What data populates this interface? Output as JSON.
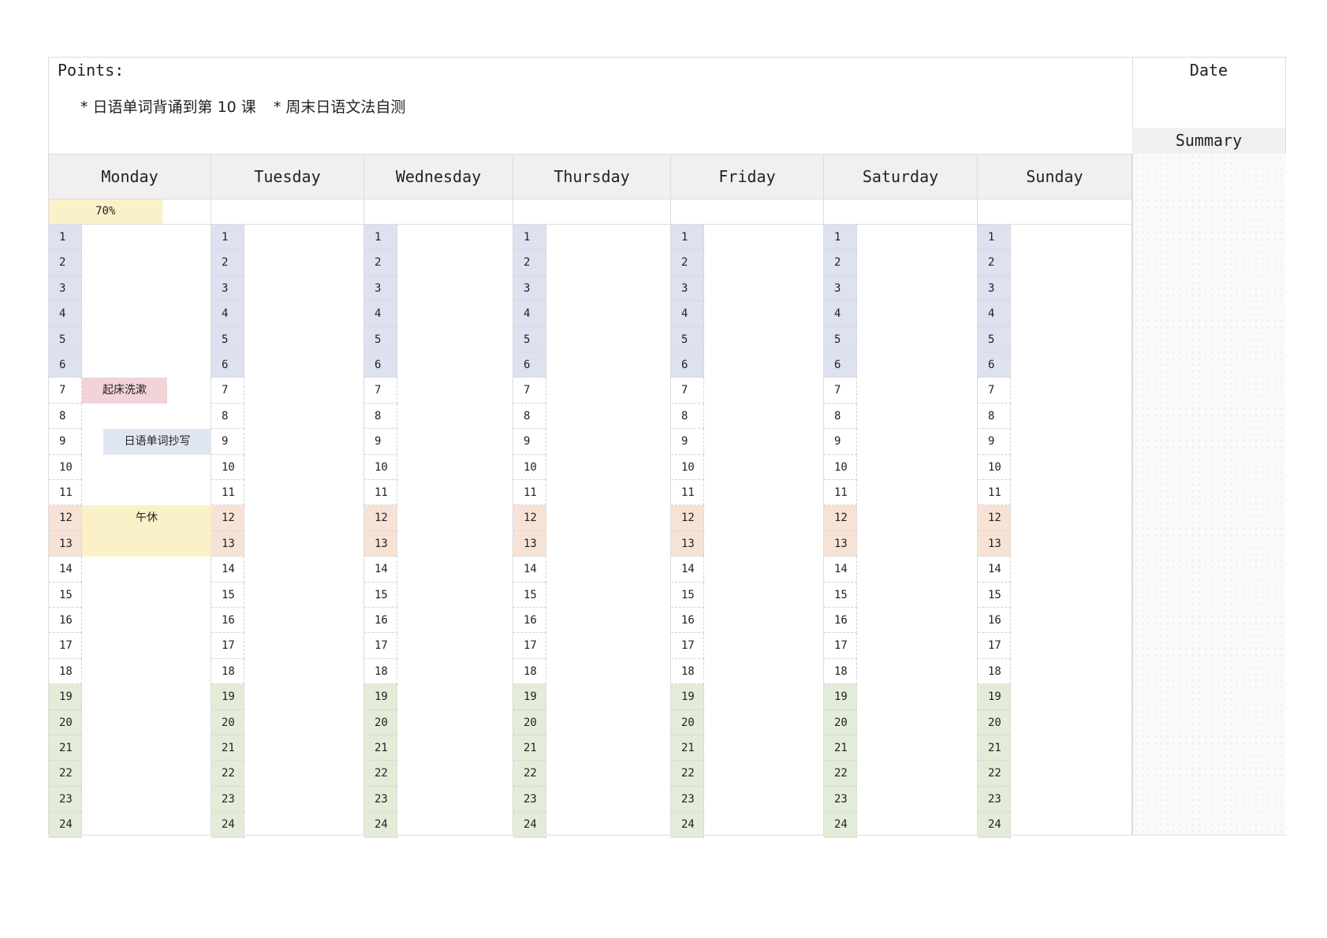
{
  "points": {
    "label": "Points:",
    "items": [
      "* 日语单词背诵到第 10 课",
      "* 周末日语文法自测"
    ]
  },
  "date_label": "Date",
  "summary_label": "Summary",
  "days": [
    {
      "name": "Monday",
      "progress_text": "70%",
      "progress": 0.7
    },
    {
      "name": "Tuesday",
      "progress_text": "",
      "progress": 0
    },
    {
      "name": "Wednesday",
      "progress_text": "",
      "progress": 0
    },
    {
      "name": "Thursday",
      "progress_text": "",
      "progress": 0
    },
    {
      "name": "Friday",
      "progress_text": "",
      "progress": 0
    },
    {
      "name": "Saturday",
      "progress_text": "",
      "progress": 0
    },
    {
      "name": "Sunday",
      "progress_text": "",
      "progress": 0
    }
  ],
  "hours": [
    "1",
    "2",
    "3",
    "4",
    "5",
    "6",
    "7",
    "8",
    "9",
    "10",
    "11",
    "12",
    "13",
    "14",
    "15",
    "16",
    "17",
    "18",
    "19",
    "20",
    "21",
    "22",
    "23",
    "24"
  ],
  "hour_bands": {
    "night": [
      1,
      6
    ],
    "noon": [
      12,
      13
    ],
    "evening": [
      19,
      24
    ]
  },
  "colors": {
    "night": "#dde1f0",
    "noon": "#f7e3d6",
    "evening": "#e3ecd9",
    "progress": "#fbf1c9",
    "event_pink": "#f2d3d8",
    "event_blue": "#dfe6f2",
    "event_yellow": "#fbf1c9"
  },
  "events": [
    {
      "day": 0,
      "start_hour": 7,
      "end_hour": 7,
      "label": "起床洗漱",
      "color": "#f2d3d8"
    },
    {
      "day": 0,
      "start_hour": 9,
      "end_hour": 9,
      "label": "日语单词抄写",
      "color": "#dfe6f2"
    },
    {
      "day": 0,
      "start_hour": 12,
      "end_hour": 13,
      "label": "午休",
      "color": "#fbf1c9"
    }
  ]
}
